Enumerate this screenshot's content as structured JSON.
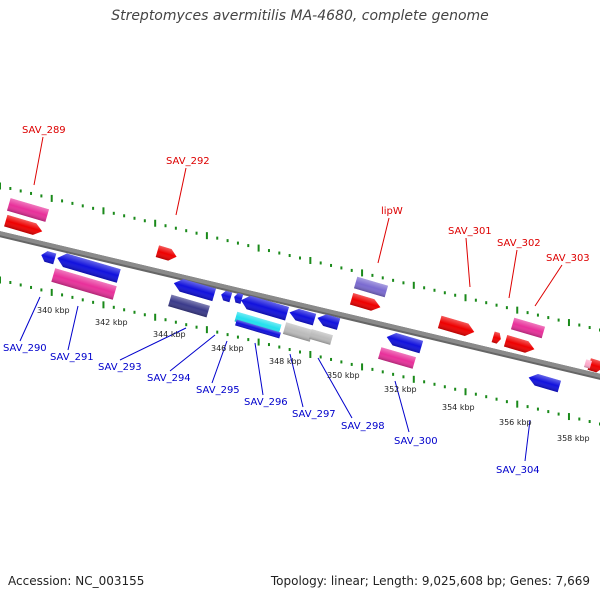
{
  "title": "Streptomyces avermitilis MA-4680, complete genome",
  "accession_text": "Accession: NC_003155",
  "summary_text": "Topology: linear; Length: 9,025,608 bp; Genes: 7,669",
  "colors": {
    "backbone": "#8a8a8a",
    "tick": "#1a8a1a",
    "gene_red": "#ee0000",
    "gene_pink": "#e8309a",
    "gene_blue": "#1111dd",
    "gene_navy": "#3a3a8a",
    "gene_lavender": "#7a6ad0",
    "gene_cyan": "#22e0ee",
    "gene_gray": "#bbbbbb",
    "label_upper": "#dd0000",
    "label_lower": "#0000cc"
  },
  "coordinate_labels": [
    "340 kbp",
    "342 kbp",
    "344 kbp",
    "346 kbp",
    "348 kbp",
    "350 kbp",
    "352 kbp",
    "354 kbp",
    "356 kbp",
    "358 kbp"
  ],
  "upper_gene_labels": [
    "SAV_289",
    "SAV_292",
    "lipW",
    "SAV_301",
    "SAV_302",
    "SAV_303"
  ],
  "lower_gene_labels": [
    "SAV_290",
    "SAV_291",
    "SAV_293",
    "SAV_294",
    "SAV_295",
    "SAV_296",
    "SAV_297",
    "SAV_298",
    "SAV_300",
    "SAV_304"
  ]
}
